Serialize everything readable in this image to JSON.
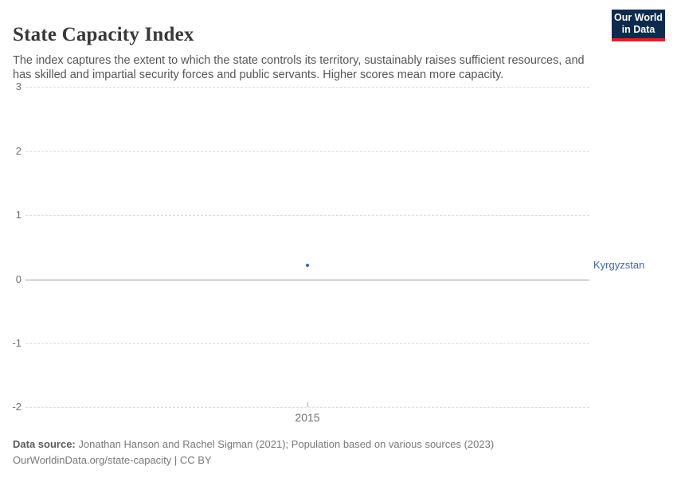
{
  "header": {
    "title": "State Capacity Index",
    "subtitle": "The index captures the extent to which the state controls its territory, sustainably raises sufficient resources, and has skilled and impartial security forces and public servants. Higher scores mean more capacity.",
    "logo": {
      "line1": "Our World",
      "line2": "in Data",
      "bg_color": "#0e2b4e",
      "accent_color": "#d8232c"
    }
  },
  "chart_data": {
    "type": "scatter",
    "title": "State Capacity Index",
    "x": [
      2015
    ],
    "series": [
      {
        "name": "Kyrgyzstan",
        "values": [
          0.22
        ],
        "color": "#4165a7"
      }
    ],
    "xticks": [
      2015
    ],
    "yticks": [
      3,
      2,
      1,
      0,
      -1,
      -2
    ],
    "ylim": [
      -2,
      3
    ],
    "grid": "horizontal-dashed",
    "zero_line": true,
    "legend_position": "right-entity-label",
    "entity_label": "Kyrgyzstan"
  },
  "footer": {
    "data_source_label": "Data source:",
    "data_source_value": "Jonathan Hanson and Rachel Sigman (2021); Population based on various sources (2023)",
    "url": "OurWorldinData.org/state-capacity",
    "separator": "|",
    "license": "CC BY"
  }
}
